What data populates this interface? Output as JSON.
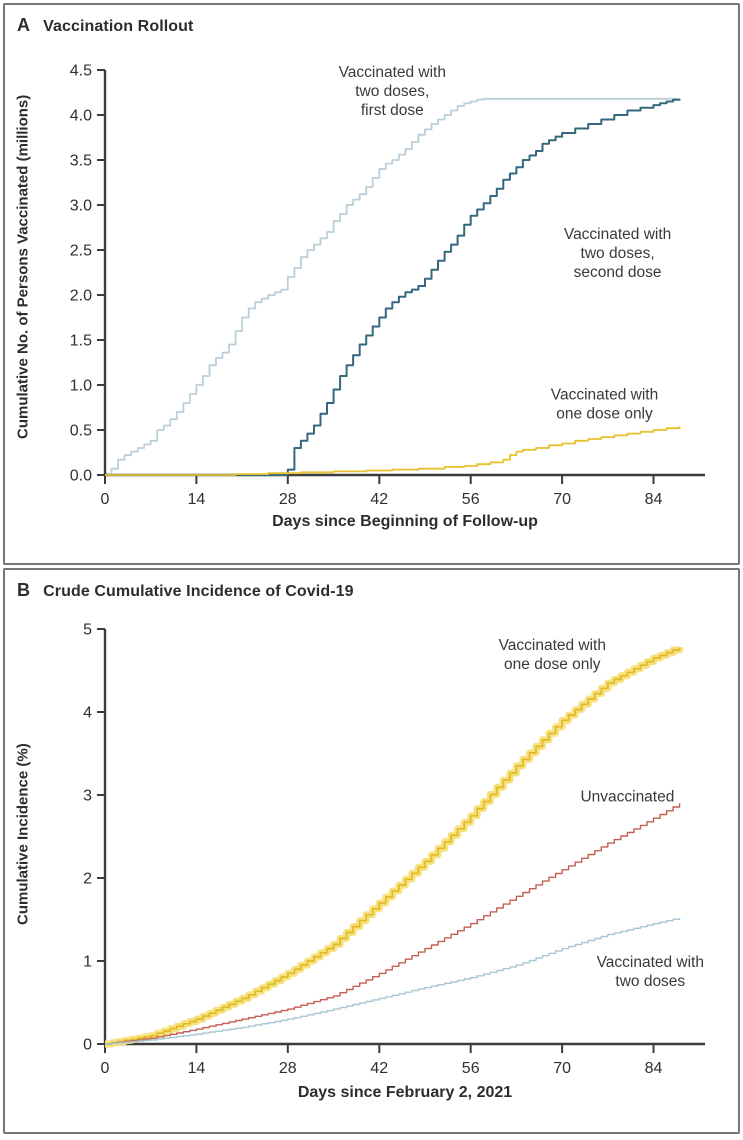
{
  "colors": {
    "axis": "#3b3b3b",
    "panel_border": "#74777a",
    "first_dose_line": "#b9cfda",
    "second_dose_line": "#33687f",
    "one_dose_line": "#e7c12e",
    "one_dose_band": "#f7e17c",
    "unvaccinated_line": "#c45f52",
    "two_doses_line": "#a9c6d4"
  },
  "chart_data": [
    {
      "type": "line",
      "subtype": "step",
      "panel_tag": "A",
      "title": "Vaccination Rollout",
      "xlabel": "Days since Beginning of Follow-up",
      "ylabel": "Cumulative No. of Persons Vaccinated (millions)",
      "xlim": [
        0,
        91
      ],
      "ylim": [
        0,
        4.5
      ],
      "grid": false,
      "x_ticks": [
        0,
        14,
        28,
        42,
        56,
        70,
        84
      ],
      "y_ticks": {
        "labels": [
          "4.5",
          "4.0",
          "3.5",
          "3.0",
          "2.5",
          "2.0",
          "1.5",
          "1.0",
          "0.5",
          "0.0"
        ],
        "values": [
          4.5,
          4.0,
          3.5,
          3.0,
          2.5,
          2.0,
          1.5,
          1.0,
          0.5,
          0.0
        ]
      },
      "series": [
        {
          "name": "Vaccinated with two doses, first dose",
          "color": "#b9cfda",
          "width": 1.8,
          "step": "anchors",
          "points": [
            [
              0,
              0
            ],
            [
              1,
              0.07
            ],
            [
              2,
              0.17
            ],
            [
              3,
              0.22
            ],
            [
              4,
              0.26
            ],
            [
              5,
              0.3
            ],
            [
              6,
              0.34
            ],
            [
              7,
              0.38
            ],
            [
              8,
              0.5
            ],
            [
              9,
              0.55
            ],
            [
              10,
              0.62
            ],
            [
              11,
              0.7
            ],
            [
              12,
              0.8
            ],
            [
              13,
              0.9
            ],
            [
              14,
              1.0
            ],
            [
              15,
              1.1
            ],
            [
              16,
              1.22
            ],
            [
              17,
              1.3
            ],
            [
              18,
              1.36
            ],
            [
              19,
              1.45
            ],
            [
              20,
              1.6
            ],
            [
              21,
              1.75
            ],
            [
              22,
              1.85
            ],
            [
              23,
              1.92
            ],
            [
              24,
              1.96
            ],
            [
              25,
              2.0
            ],
            [
              26,
              2.03
            ],
            [
              27,
              2.06
            ],
            [
              28,
              2.2
            ],
            [
              29,
              2.3
            ],
            [
              30,
              2.42
            ],
            [
              31,
              2.5
            ],
            [
              32,
              2.56
            ],
            [
              33,
              2.63
            ],
            [
              34,
              2.7
            ],
            [
              35,
              2.82
            ],
            [
              36,
              2.9
            ],
            [
              37,
              3.0
            ],
            [
              38,
              3.06
            ],
            [
              39,
              3.12
            ],
            [
              40,
              3.2
            ],
            [
              41,
              3.3
            ],
            [
              42,
              3.4
            ],
            [
              43,
              3.46
            ],
            [
              44,
              3.5
            ],
            [
              45,
              3.56
            ],
            [
              46,
              3.62
            ],
            [
              47,
              3.7
            ],
            [
              48,
              3.78
            ],
            [
              49,
              3.84
            ],
            [
              50,
              3.9
            ],
            [
              51,
              3.95
            ],
            [
              52,
              4.0
            ],
            [
              53,
              4.05
            ],
            [
              54,
              4.1
            ],
            [
              55,
              4.13
            ],
            [
              56,
              4.15
            ],
            [
              57,
              4.17
            ],
            [
              58,
              4.18
            ],
            [
              88,
              4.18
            ]
          ]
        },
        {
          "name": "Vaccinated with two doses, second dose",
          "color": "#33687f",
          "width": 2,
          "step": "anchors",
          "points": [
            [
              0,
              0
            ],
            [
              27,
              0
            ],
            [
              28,
              0.06
            ],
            [
              29,
              0.3
            ],
            [
              30,
              0.38
            ],
            [
              31,
              0.46
            ],
            [
              32,
              0.55
            ],
            [
              33,
              0.68
            ],
            [
              34,
              0.8
            ],
            [
              35,
              0.95
            ],
            [
              36,
              1.1
            ],
            [
              37,
              1.22
            ],
            [
              38,
              1.33
            ],
            [
              39,
              1.45
            ],
            [
              40,
              1.55
            ],
            [
              41,
              1.65
            ],
            [
              42,
              1.75
            ],
            [
              43,
              1.85
            ],
            [
              44,
              1.92
            ],
            [
              45,
              1.98
            ],
            [
              46,
              2.03
            ],
            [
              47,
              2.06
            ],
            [
              48,
              2.1
            ],
            [
              49,
              2.18
            ],
            [
              50,
              2.28
            ],
            [
              51,
              2.38
            ],
            [
              52,
              2.48
            ],
            [
              53,
              2.56
            ],
            [
              54,
              2.66
            ],
            [
              55,
              2.78
            ],
            [
              56,
              2.88
            ],
            [
              57,
              2.95
            ],
            [
              58,
              3.02
            ],
            [
              59,
              3.1
            ],
            [
              60,
              3.18
            ],
            [
              61,
              3.28
            ],
            [
              62,
              3.35
            ],
            [
              63,
              3.42
            ],
            [
              64,
              3.5
            ],
            [
              65,
              3.55
            ],
            [
              66,
              3.6
            ],
            [
              67,
              3.68
            ],
            [
              68,
              3.72
            ],
            [
              69,
              3.76
            ],
            [
              70,
              3.8
            ],
            [
              72,
              3.85
            ],
            [
              74,
              3.9
            ],
            [
              76,
              3.95
            ],
            [
              78,
              4.0
            ],
            [
              80,
              4.05
            ],
            [
              82,
              4.08
            ],
            [
              84,
              4.11
            ],
            [
              85,
              4.13
            ],
            [
              86,
              4.15
            ],
            [
              87,
              4.17
            ],
            [
              88,
              4.18
            ]
          ]
        },
        {
          "name": "Vaccinated with one dose only",
          "color": "#e7c12e",
          "width": 1.8,
          "step": "anchors",
          "points": [
            [
              0,
              0
            ],
            [
              20,
              0.01
            ],
            [
              25,
              0.02
            ],
            [
              30,
              0.03
            ],
            [
              35,
              0.04
            ],
            [
              40,
              0.05
            ],
            [
              44,
              0.06
            ],
            [
              48,
              0.07
            ],
            [
              52,
              0.09
            ],
            [
              55,
              0.1
            ],
            [
              57,
              0.12
            ],
            [
              59,
              0.14
            ],
            [
              61,
              0.17
            ],
            [
              62,
              0.22
            ],
            [
              63,
              0.26
            ],
            [
              64,
              0.28
            ],
            [
              66,
              0.3
            ],
            [
              68,
              0.33
            ],
            [
              70,
              0.35
            ],
            [
              72,
              0.38
            ],
            [
              74,
              0.4
            ],
            [
              76,
              0.42
            ],
            [
              78,
              0.44
            ],
            [
              80,
              0.46
            ],
            [
              82,
              0.48
            ],
            [
              84,
              0.5
            ],
            [
              86,
              0.52
            ],
            [
              88,
              0.54
            ]
          ]
        }
      ],
      "annotations": [
        {
          "lines": [
            "Vaccinated with",
            "two doses,",
            "first dose"
          ],
          "day": 44,
          "value": 4.42
        },
        {
          "lines": [
            "Vaccinated with",
            "two doses,",
            "second dose"
          ],
          "day": 78.5,
          "value": 2.62
        },
        {
          "lines": [
            "Vaccinated with",
            "one dose only"
          ],
          "day": 76.5,
          "value": 0.84
        }
      ]
    },
    {
      "type": "line",
      "subtype": "step",
      "panel_tag": "B",
      "title": "Crude Cumulative Incidence of Covid-19",
      "xlabel": "Days since February 2, 2021",
      "ylabel": "Cumulative Incidence (%)",
      "xlim": [
        0,
        91
      ],
      "ylim": [
        0,
        5
      ],
      "grid": false,
      "x_ticks": [
        0,
        14,
        28,
        42,
        56,
        70,
        84
      ],
      "y_ticks": {
        "labels": [
          "5",
          "4",
          "3",
          "2",
          "1",
          "0"
        ],
        "values": [
          5,
          4,
          3,
          2,
          1,
          0
        ]
      },
      "series": [
        {
          "name": "Vaccinated with one dose only",
          "color": "#e2b928",
          "band_color": "#f7e17c",
          "band_width": 7,
          "width": 1.7,
          "step": "daily",
          "points": [
            [
              0,
              0
            ],
            [
              7,
              0.1
            ],
            [
              14,
              0.3
            ],
            [
              21,
              0.55
            ],
            [
              28,
              0.85
            ],
            [
              35,
              1.2
            ],
            [
              42,
              1.7
            ],
            [
              49,
              2.2
            ],
            [
              56,
              2.75
            ],
            [
              63,
              3.35
            ],
            [
              70,
              3.9
            ],
            [
              77,
              4.35
            ],
            [
              84,
              4.65
            ],
            [
              88,
              4.78
            ]
          ]
        },
        {
          "name": "Unvaccinated",
          "color": "#c45f52",
          "width": 1.4,
          "step": "daily",
          "points": [
            [
              0,
              0
            ],
            [
              7,
              0.07
            ],
            [
              14,
              0.18
            ],
            [
              21,
              0.3
            ],
            [
              28,
              0.42
            ],
            [
              35,
              0.58
            ],
            [
              42,
              0.85
            ],
            [
              49,
              1.15
            ],
            [
              56,
              1.45
            ],
            [
              63,
              1.78
            ],
            [
              70,
              2.1
            ],
            [
              77,
              2.42
            ],
            [
              84,
              2.72
            ],
            [
              88,
              2.9
            ]
          ]
        },
        {
          "name": "Vaccinated with two doses",
          "color": "#a9c6d4",
          "width": 1.4,
          "step": "daily",
          "points": [
            [
              0,
              0
            ],
            [
              7,
              0.05
            ],
            [
              14,
              0.12
            ],
            [
              21,
              0.2
            ],
            [
              28,
              0.3
            ],
            [
              35,
              0.42
            ],
            [
              42,
              0.55
            ],
            [
              49,
              0.68
            ],
            [
              56,
              0.8
            ],
            [
              63,
              0.95
            ],
            [
              70,
              1.15
            ],
            [
              77,
              1.32
            ],
            [
              84,
              1.45
            ],
            [
              88,
              1.52
            ]
          ]
        }
      ],
      "annotations": [
        {
          "lines": [
            "Vaccinated with",
            "one dose only"
          ],
          "day": 68.5,
          "value": 4.75
        },
        {
          "lines": [
            "Unvaccinated"
          ],
          "day": 80,
          "value": 2.92
        },
        {
          "lines": [
            "Vaccinated with",
            "two doses"
          ],
          "day": 83.5,
          "value": 0.93
        }
      ]
    }
  ]
}
